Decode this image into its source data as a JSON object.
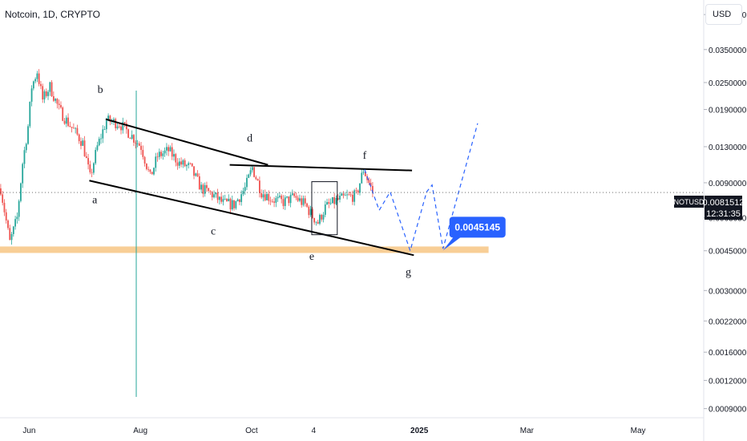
{
  "header": {
    "title": "Notcoin, 1D, CRYPTO",
    "currency": "USD"
  },
  "price_tag": {
    "symbol": "NOTUSD",
    "price": "0.0081512",
    "countdown": "12:31:35"
  },
  "target_label": "0.0045145",
  "colors": {
    "up": "#26a69a",
    "down": "#ef5350",
    "support_zone": "#f7c98b",
    "projection": "#2962ff",
    "target_bg": "#2962ff",
    "trendline": "#000000"
  },
  "chart_data": {
    "type": "candlestick",
    "title": "Notcoin, 1D, CRYPTO",
    "y_scale": "log",
    "y_ticks": [
      "0.0500000",
      "0.0350000",
      "0.0250000",
      "0.0190000",
      "0.0130000",
      "0.0090000",
      "0.0063000",
      "0.0045000",
      "0.0030000",
      "0.0022000",
      "0.0016000",
      "0.0012000",
      "0.0009000"
    ],
    "y_tick_values": [
      0.05,
      0.035,
      0.025,
      0.019,
      0.013,
      0.009,
      0.0063,
      0.0045,
      0.003,
      0.0022,
      0.0016,
      0.0012,
      0.0009
    ],
    "x_ticks": [
      "Jun",
      "Aug",
      "Oct",
      "4",
      "2025",
      "Mar",
      "May"
    ],
    "x_tick_dates": [
      "2024-06-01",
      "2024-08-01",
      "2024-10-01",
      "2024-11-04",
      "2025-01-01",
      "2025-03-01",
      "2025-05-01"
    ],
    "x_range": [
      "2024-05-16",
      "2025-06-06"
    ],
    "y_range": [
      0.00082,
      0.058
    ],
    "price_path": [
      [
        "2024-05-16",
        0.0085
      ],
      [
        "2024-05-18",
        0.0068
      ],
      [
        "2024-05-21",
        0.0049
      ],
      [
        "2024-05-25",
        0.0063
      ],
      [
        "2024-05-28",
        0.011
      ],
      [
        "2024-05-31",
        0.016
      ],
      [
        "2024-06-02",
        0.024
      ],
      [
        "2024-06-05",
        0.028
      ],
      [
        "2024-06-08",
        0.021
      ],
      [
        "2024-06-12",
        0.024
      ],
      [
        "2024-06-17",
        0.019
      ],
      [
        "2024-06-21",
        0.017
      ],
      [
        "2024-06-26",
        0.015
      ],
      [
        "2024-06-30",
        0.0135
      ],
      [
        "2024-07-04",
        0.0095
      ],
      [
        "2024-07-08",
        0.013
      ],
      [
        "2024-07-13",
        0.017
      ],
      [
        "2024-07-20",
        0.0165
      ],
      [
        "2024-07-26",
        0.0148
      ],
      [
        "2024-08-01",
        0.013
      ],
      [
        "2024-08-06",
        0.0095
      ],
      [
        "2024-08-10",
        0.0118
      ],
      [
        "2024-08-16",
        0.0125
      ],
      [
        "2024-08-22",
        0.011
      ],
      [
        "2024-08-28",
        0.0105
      ],
      [
        "2024-09-03",
        0.0085
      ],
      [
        "2024-09-09",
        0.008
      ],
      [
        "2024-09-15",
        0.0073
      ],
      [
        "2024-09-21",
        0.0072
      ],
      [
        "2024-09-27",
        0.0085
      ],
      [
        "2024-10-01",
        0.0105
      ],
      [
        "2024-10-06",
        0.0082
      ],
      [
        "2024-10-12",
        0.0076
      ],
      [
        "2024-10-18",
        0.0074
      ],
      [
        "2024-10-24",
        0.0078
      ],
      [
        "2024-10-30",
        0.0072
      ],
      [
        "2024-11-03",
        0.0064
      ],
      [
        "2024-11-06",
        0.006
      ],
      [
        "2024-11-10",
        0.007
      ],
      [
        "2024-11-16",
        0.0075
      ],
      [
        "2024-11-22",
        0.0078
      ],
      [
        "2024-11-27",
        0.0079
      ],
      [
        "2024-12-01",
        0.0103
      ],
      [
        "2024-12-06",
        0.0082
      ]
    ],
    "annotations": {
      "wave_labels": [
        {
          "text": "a",
          "date": "2024-07-07",
          "price": 0.0073
        },
        {
          "text": "b",
          "date": "2024-07-10",
          "price": 0.0225
        },
        {
          "text": "c",
          "date": "2024-09-10",
          "price": 0.0053
        },
        {
          "text": "d",
          "date": "2024-09-30",
          "price": 0.0137
        },
        {
          "text": "e",
          "date": "2024-11-03",
          "price": 0.0041
        },
        {
          "text": "f",
          "date": "2024-12-02",
          "price": 0.0115
        },
        {
          "text": "g",
          "date": "2024-12-26",
          "price": 0.0035
        }
      ],
      "trendlines": [
        {
          "from": [
            "2024-07-04",
            0.0092
          ],
          "to": [
            "2024-12-29",
            0.0043
          ]
        },
        {
          "from": [
            "2024-07-13",
            0.0172
          ],
          "to": [
            "2024-10-10",
            0.0108
          ]
        },
        {
          "from": [
            "2024-09-19",
            0.0108
          ],
          "to": [
            "2024-12-28",
            0.0102
          ]
        }
      ],
      "box": {
        "from": [
          "2024-11-03",
          0.0091
        ],
        "to": [
          "2024-11-17",
          0.0053
        ]
      },
      "support_zone": {
        "from": "2024-05-16",
        "to": "2025-02-08",
        "low": 0.0044,
        "high": 0.0047
      },
      "projection": [
        [
          "2024-12-02",
          0.0103
        ],
        [
          "2024-12-10",
          0.0068
        ],
        [
          "2024-12-16",
          0.0082
        ],
        [
          "2024-12-27",
          0.0045
        ],
        [
          "2025-01-05",
          0.0082
        ],
        [
          "2025-01-08",
          0.0088
        ],
        [
          "2025-01-14",
          0.0046
        ],
        [
          "2025-02-02",
          0.0165
        ]
      ],
      "target": {
        "text": "0.0045145",
        "price": 0.0045145,
        "date": "2025-01-14"
      },
      "current_price": 0.0081512
    }
  }
}
